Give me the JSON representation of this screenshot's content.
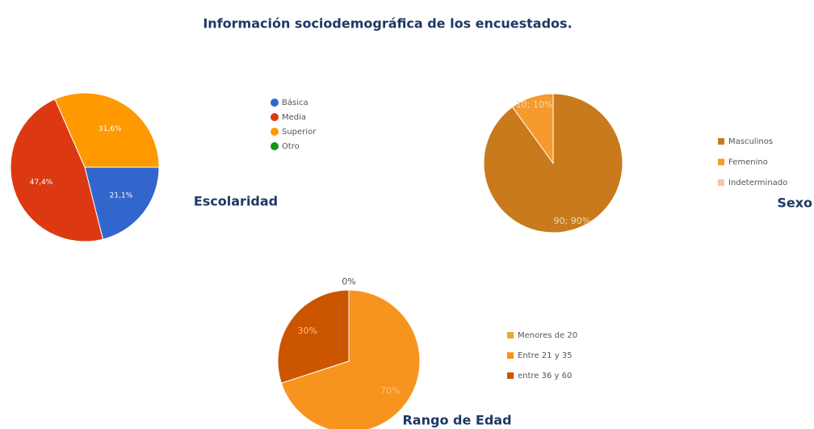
{
  "title": "Información sociodemográfica de los encuestados.",
  "chart_data": [
    {
      "type": "pie",
      "title": "Escolaridad",
      "categories": [
        "Básica",
        "Media",
        "Superior",
        "Otro"
      ],
      "values": [
        21.1,
        47.4,
        31.6,
        0
      ],
      "value_labels": [
        "21,1%",
        "47,4%",
        "31,6%",
        null
      ],
      "colors": [
        "#3366cc",
        "#dc3912",
        "#ff9900",
        "#109618"
      ]
    },
    {
      "type": "pie",
      "title": "Sexo",
      "categories": [
        "Masculinos",
        "Femenino",
        "Indeterminado"
      ],
      "values": [
        90,
        10,
        0
      ],
      "value_labels": [
        "90; 90%",
        "10; 10%",
        null
      ],
      "colors": [
        "#c97a1c",
        "#f59a2c",
        "#f7c4a4"
      ]
    },
    {
      "type": "pie",
      "title": "Rango de Edad",
      "categories": [
        "Menores de 20",
        "Entre 21 y 35",
        "entre 36 y 60"
      ],
      "values": [
        0,
        70,
        30
      ],
      "value_labels": [
        "0%",
        "70%",
        "30%"
      ],
      "colors": [
        "#e3ad2e",
        "#f7941e",
        "#cc5500"
      ]
    }
  ]
}
